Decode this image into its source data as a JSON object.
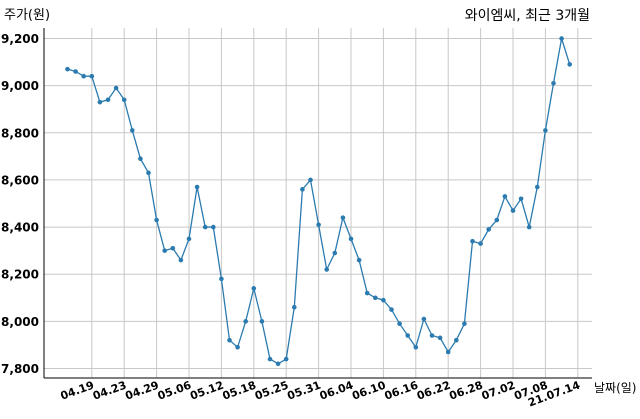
{
  "chart_data": {
    "type": "line",
    "title": "와이엠씨, 최근 3개월",
    "ylabel": "주가(원)",
    "xlabel": "날짜(일)",
    "ylim": [
      7750,
      9320
    ],
    "yticks": [
      7800,
      8000,
      8200,
      8400,
      8600,
      8800,
      9000,
      9200
    ],
    "ytick_labels": [
      "7,800",
      "8,000",
      "8,200",
      "8,400",
      "8,600",
      "8,800",
      "9,000",
      "9,200"
    ],
    "xtick_labels": [
      {
        "label": "04.19",
        "index": 3
      },
      {
        "label": "04.23",
        "index": 7
      },
      {
        "label": "04.29",
        "index": 11
      },
      {
        "label": "05.06",
        "index": 15
      },
      {
        "label": "05.12",
        "index": 19
      },
      {
        "label": "05.18",
        "index": 23
      },
      {
        "label": "05.25",
        "index": 27
      },
      {
        "label": "05.31",
        "index": 31
      },
      {
        "label": "06.04",
        "index": 35
      },
      {
        "label": "06.10",
        "index": 39
      },
      {
        "label": "06.16",
        "index": 43
      },
      {
        "label": "06.22",
        "index": 47
      },
      {
        "label": "06.28",
        "index": 51
      },
      {
        "label": "07.02",
        "index": 55
      },
      {
        "label": "07.08",
        "index": 59
      },
      {
        "label": "21.07.14",
        "index": 63
      }
    ],
    "grid": true,
    "color": "#2b7bb0",
    "series": [
      {
        "values": [
          9070,
          9060,
          9040,
          9040,
          8930,
          8940,
          8990,
          8940,
          8810,
          8690,
          8630,
          8430,
          8300,
          8310,
          8260,
          8350,
          8570,
          8400,
          8400,
          8180,
          7920,
          7890,
          8000,
          8140,
          8000,
          7840,
          7820,
          7840,
          8060,
          8560,
          8600,
          8410,
          8220,
          8290,
          8440,
          8350,
          8260,
          8120,
          8100,
          8090,
          8050,
          7990,
          7940,
          7890,
          8010,
          7940,
          7930,
          7870,
          7920,
          7990,
          8340,
          8330,
          8390,
          8430,
          8530,
          8470,
          8520,
          8400,
          8570,
          8810,
          9010,
          9200,
          9090
        ]
      }
    ]
  }
}
